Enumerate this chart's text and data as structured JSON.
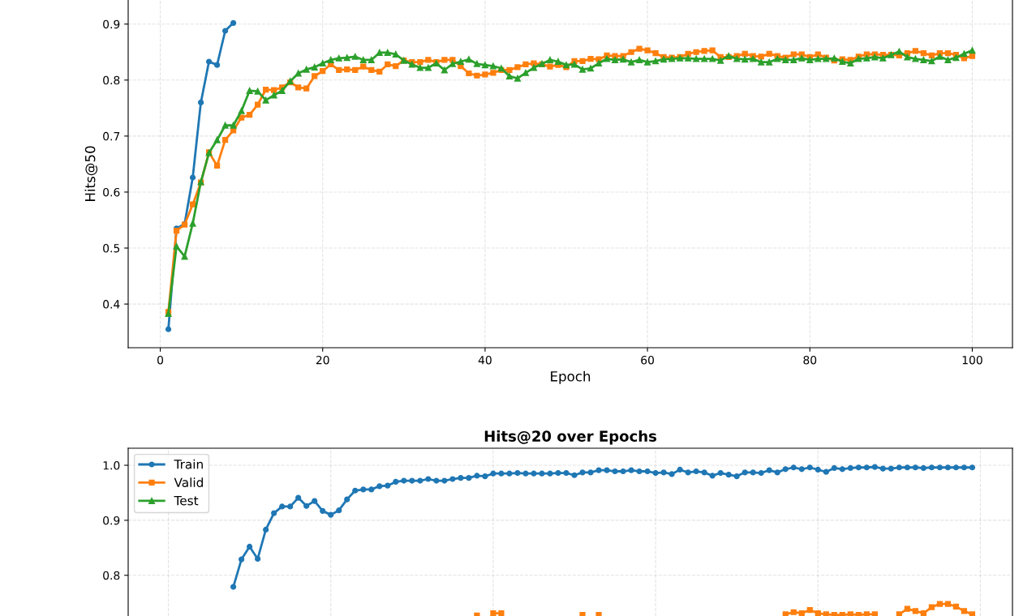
{
  "chart_data": [
    {
      "type": "line",
      "xlabel": "Epoch",
      "ylabel": "Hits@50",
      "x": [
        1,
        2,
        3,
        4,
        5,
        6,
        7,
        8,
        9,
        10,
        11,
        12,
        13,
        14,
        15,
        16,
        17,
        18,
        19,
        20,
        21,
        22,
        23,
        24,
        25,
        26,
        27,
        28,
        29,
        30,
        31,
        32,
        33,
        34,
        35,
        36,
        37,
        38,
        39,
        40,
        41,
        42,
        43,
        44,
        45,
        46,
        47,
        48,
        49,
        50,
        51,
        52,
        53,
        54,
        55,
        56,
        57,
        58,
        59,
        60,
        61,
        62,
        63,
        64,
        65,
        66,
        67,
        68,
        69,
        70,
        71,
        72,
        73,
        74,
        75,
        76,
        77,
        78,
        79,
        80,
        81,
        82,
        83,
        84,
        85,
        86,
        87,
        88,
        89,
        90,
        91,
        92,
        93,
        94,
        95,
        96,
        97,
        98,
        99,
        100
      ],
      "xlim": [
        -3.95,
        104.95
      ],
      "xticks": [
        0,
        20,
        40,
        60,
        80,
        100
      ],
      "ylim": [
        0.322,
        0.943
      ],
      "yticks": [
        0.4,
        0.5,
        0.6,
        0.7,
        0.8,
        0.9
      ],
      "grid": true,
      "line_style": "solid",
      "series": [
        {
          "color": "#1f77b4",
          "marker": "circle",
          "values": [
            0.355,
            0.535,
            0.543,
            0.626,
            0.76,
            0.833,
            0.827,
            0.888,
            0.902,
            null,
            null,
            null,
            null,
            null,
            null,
            null,
            null,
            null,
            null,
            null,
            null,
            null,
            null,
            null,
            null,
            null,
            null,
            null,
            null,
            null,
            null,
            null,
            null,
            null,
            null,
            null,
            null,
            null,
            null,
            null,
            null,
            null,
            null,
            null,
            null,
            null,
            null,
            null,
            null,
            null,
            null,
            null,
            null,
            null,
            null,
            null,
            null,
            null,
            null,
            null,
            null,
            null,
            null,
            null,
            null,
            null,
            null,
            null,
            null,
            null,
            null,
            null,
            null,
            null,
            null,
            null,
            null,
            null,
            null,
            null,
            null,
            null,
            null,
            null,
            null,
            null,
            null,
            null,
            null,
            null,
            null,
            null,
            null,
            null,
            null,
            null,
            null,
            null,
            null,
            null
          ]
        },
        {
          "color": "#ff7f0e",
          "marker": "square",
          "values": [
            0.386,
            0.531,
            0.542,
            0.578,
            0.617,
            0.671,
            0.647,
            0.693,
            0.71,
            0.733,
            0.738,
            0.756,
            0.783,
            0.782,
            0.787,
            0.796,
            0.787,
            0.785,
            0.807,
            0.816,
            0.828,
            0.818,
            0.819,
            0.818,
            0.824,
            0.818,
            0.815,
            0.828,
            0.825,
            0.835,
            0.832,
            0.832,
            0.836,
            0.832,
            0.836,
            0.836,
            0.825,
            0.812,
            0.808,
            0.81,
            0.813,
            0.818,
            0.818,
            0.823,
            0.828,
            0.83,
            0.828,
            0.824,
            0.827,
            0.823,
            0.834,
            0.834,
            0.838,
            0.837,
            0.844,
            0.843,
            0.843,
            0.85,
            0.856,
            0.853,
            0.848,
            0.841,
            0.84,
            0.841,
            0.847,
            0.85,
            0.852,
            0.853,
            0.841,
            0.841,
            0.843,
            0.847,
            0.843,
            0.842,
            0.847,
            0.843,
            0.84,
            0.846,
            0.846,
            0.841,
            0.846,
            0.84,
            0.835,
            0.837,
            0.836,
            0.842,
            0.846,
            0.846,
            0.845,
            0.845,
            0.844,
            0.848,
            0.852,
            0.848,
            0.844,
            0.848,
            0.848,
            0.845,
            0.839,
            0.843
          ]
        },
        {
          "color": "#2ca02c",
          "marker": "triangle",
          "values": [
            0.383,
            0.503,
            0.485,
            0.544,
            0.618,
            0.67,
            0.693,
            0.719,
            0.719,
            0.745,
            0.781,
            0.78,
            0.764,
            0.773,
            0.781,
            0.798,
            0.812,
            0.819,
            0.823,
            0.83,
            0.836,
            0.839,
            0.84,
            0.842,
            0.836,
            0.836,
            0.849,
            0.849,
            0.846,
            0.835,
            0.828,
            0.822,
            0.822,
            0.83,
            0.818,
            0.829,
            0.833,
            0.837,
            0.829,
            0.827,
            0.825,
            0.821,
            0.807,
            0.803,
            0.813,
            0.822,
            0.829,
            0.836,
            0.833,
            0.827,
            0.828,
            0.819,
            0.821,
            0.83,
            0.838,
            0.836,
            0.837,
            0.832,
            0.836,
            0.832,
            0.834,
            0.837,
            0.838,
            0.839,
            0.839,
            0.838,
            0.838,
            0.838,
            0.835,
            0.843,
            0.838,
            0.837,
            0.838,
            0.832,
            0.832,
            0.838,
            0.836,
            0.836,
            0.839,
            0.836,
            0.838,
            0.838,
            0.839,
            0.833,
            0.83,
            0.838,
            0.839,
            0.841,
            0.839,
            0.845,
            0.851,
            0.841,
            0.838,
            0.836,
            0.834,
            0.842,
            0.836,
            0.84,
            0.847,
            0.853
          ]
        }
      ]
    },
    {
      "type": "line",
      "title": "Hits@20 over Epochs",
      "categories": [
        null,
        null,
        null,
        null,
        null,
        null,
        null,
        null,
        null,
        null,
        null,
        null,
        null,
        null,
        null,
        null,
        null,
        null,
        null,
        null,
        null,
        null,
        null,
        null,
        null,
        null,
        null,
        null,
        null,
        null,
        null,
        null,
        null,
        null,
        null,
        null,
        null,
        null,
        null,
        null,
        null,
        null,
        null,
        null,
        null,
        null,
        null,
        null,
        null,
        null,
        null,
        null,
        null,
        null,
        null,
        null,
        null,
        null,
        null,
        null,
        null,
        null,
        null,
        null,
        null,
        null,
        null,
        null,
        null,
        null,
        null,
        null,
        null,
        null,
        null,
        null,
        null,
        null,
        null,
        null,
        null,
        null,
        null,
        null,
        null,
        null,
        null,
        null,
        null,
        null,
        null,
        null,
        null,
        null,
        null,
        null,
        null,
        null,
        null,
        null
      ],
      "ylim": [
        0.726,
        1.031
      ],
      "yticks": [
        0.8,
        0.9,
        {
          "value": 1,
          "label": "1.0"
        }
      ],
      "tick_labels": "y",
      "grid": true,
      "legend": "top left",
      "line_style": "solid",
      "series": [
        {
          "name": "Train",
          "color": "#1f77b4",
          "marker": "circle",
          "values": [
            null,
            null,
            null,
            null,
            null,
            null,
            null,
            null,
            0.779,
            0.829,
            0.852,
            0.83,
            0.883,
            0.913,
            0.925,
            0.925,
            0.941,
            0.926,
            0.935,
            0.917,
            0.91,
            0.918,
            0.938,
            0.954,
            0.956,
            0.956,
            0.962,
            0.963,
            0.97,
            0.972,
            0.972,
            0.972,
            0.975,
            0.972,
            0.972,
            0.975,
            0.977,
            0.977,
            0.981,
            0.98,
            0.985,
            0.985,
            0.985,
            0.986,
            0.985,
            0.985,
            0.985,
            0.985,
            0.986,
            0.986,
            0.982,
            0.987,
            0.987,
            0.991,
            0.991,
            0.989,
            0.989,
            0.991,
            0.989,
            0.989,
            0.986,
            0.987,
            0.984,
            0.992,
            0.987,
            0.989,
            0.987,
            0.981,
            0.986,
            0.983,
            0.98,
            0.987,
            0.987,
            0.986,
            0.991,
            0.987,
            0.993,
            0.996,
            0.993,
            0.996,
            0.992,
            0.988,
            0.995,
            0.993,
            0.995,
            0.996,
            0.996,
            0.997,
            0.994,
            0.994,
            0.996,
            0.996,
            0.996,
            0.995,
            0.996,
            0.996,
            0.996,
            0.996,
            0.996,
            0.996
          ]
        },
        {
          "name": "Valid",
          "color": "#ff7f0e",
          "marker": "square",
          "values": [
            null,
            null,
            null,
            null,
            null,
            null,
            null,
            null,
            null,
            null,
            null,
            null,
            null,
            null,
            null,
            null,
            null,
            null,
            null,
            null,
            null,
            null,
            null,
            null,
            null,
            null,
            null,
            null,
            null,
            null,
            null,
            null,
            null,
            null,
            null,
            null,
            null,
            null,
            0.727,
            null,
            0.731,
            0.731,
            null,
            null,
            null,
            null,
            null,
            null,
            null,
            null,
            null,
            0.728,
            null,
            0.728,
            null,
            null,
            null,
            null,
            null,
            null,
            null,
            null,
            null,
            null,
            null,
            null,
            null,
            null,
            null,
            null,
            null,
            null,
            null,
            null,
            null,
            null,
            0.729,
            0.733,
            0.731,
            0.737,
            0.731,
            0.729,
            0.728,
            0.728,
            0.729,
            0.728,
            0.729,
            0.729,
            null,
            null,
            0.729,
            0.739,
            0.735,
            0.731,
            0.742,
            0.748,
            0.748,
            0.743,
            0.735,
            0.729
          ]
        },
        {
          "name": "Test",
          "color": "#2ca02c",
          "marker": "triangle",
          "values": [
            null,
            null,
            null,
            null,
            null,
            null,
            null,
            null,
            null,
            null,
            null,
            null,
            null,
            null,
            null,
            null,
            null,
            null,
            null,
            null,
            null,
            null,
            null,
            null,
            null,
            null,
            null,
            null,
            null,
            null,
            null,
            null,
            null,
            null,
            null,
            null,
            null,
            null,
            null,
            null,
            null,
            null,
            null,
            null,
            null,
            null,
            null,
            null,
            null,
            null,
            null,
            null,
            null,
            null,
            null,
            null,
            null,
            null,
            null,
            null,
            null,
            null,
            null,
            null,
            null,
            null,
            null,
            null,
            null,
            null,
            null,
            null,
            null,
            null,
            null,
            null,
            null,
            null,
            null,
            null,
            null,
            null,
            null,
            null,
            null,
            null,
            null,
            null,
            null,
            null,
            null,
            null,
            null,
            null,
            null,
            null,
            null,
            null,
            null,
            null
          ]
        }
      ]
    }
  ]
}
